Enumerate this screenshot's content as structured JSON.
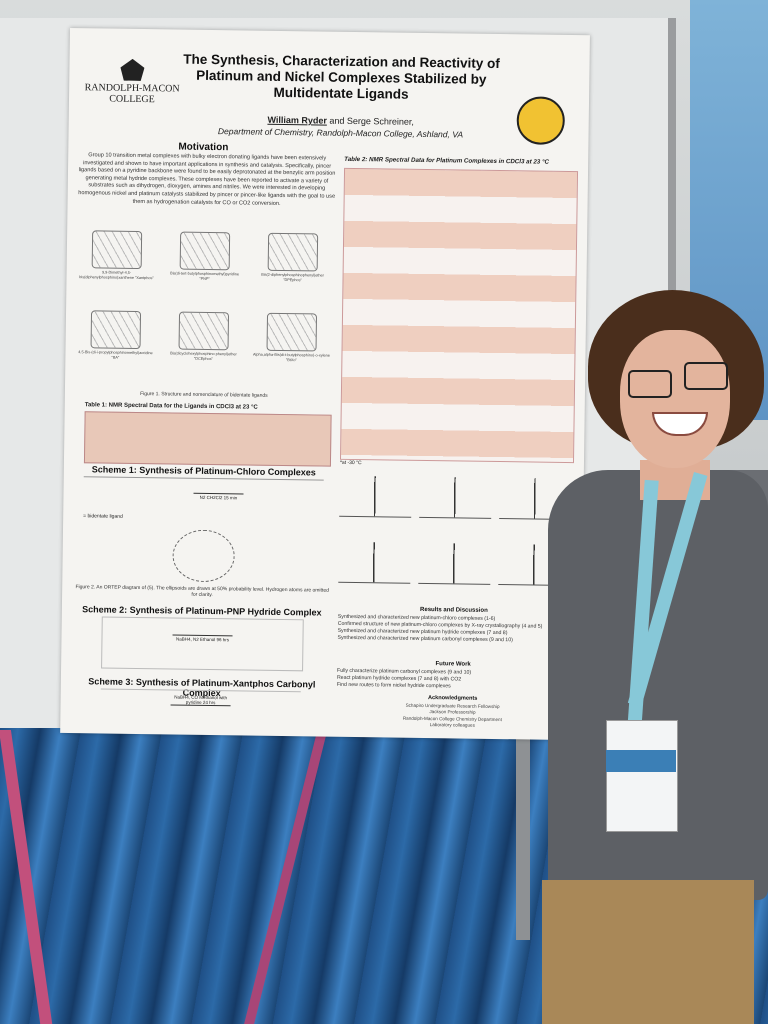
{
  "poster": {
    "logo_line1": "RANDOLPH-MACON",
    "logo_line2": "COLLEGE",
    "title": "The Synthesis, Characterization and Reactivity of Platinum and Nickel Complexes Stabilized by Multidentate Ligands",
    "author_main": "William Ryder",
    "author_rest": " and Serge Schreiner,",
    "affiliation": "Department of Chemistry, Randolph-Macon College, Ashland, VA",
    "motivation_heading": "Motivation",
    "motivation_text": "Group 10 transition metal complexes with bulky electron donating ligands have been extensively investigated and shown to have important applications in synthesis and catalysis. Specifically, pincer ligands based on a pyridine backbone were found to be easily deprotonated at the benzylic arm position generating metal hydride complexes. These complexes have been reported to activate a variety of substrates such as dihydrogen, dioxygen, amines and nitriles. We were interested in developing homogenous nickel and platinum catalysts stabilized by pincer or pincer-like ligands with the goal to use them as hydrogenation catalysts for CO or CO2 conversion.",
    "structures": [
      {
        "label": "9,9-Dimethyl-4,5-bis(diphenylphosphino)xanthene \"Xantphos\""
      },
      {
        "label": "Bis(di-tert-butylphosphinomethyl)pyridine \"PNP\""
      },
      {
        "label": "Bis(2-diphenylphosphinophenyl)ether \"DPEphos\""
      },
      {
        "label": "4,5-Bis-(di-i-propylphosphinomethyl)acridine \"BA\""
      },
      {
        "label": "Bis(dicyclohexylphosphino phenyl)ether \"DCEphos\""
      },
      {
        "label": "Alpha,alpha-Bis(di-t-butylphosphino)-o-xylene \"BtXo\""
      }
    ],
    "figure1_caption": "Figure 1. Structure and nomenclature of bidentate ligands",
    "table1_title": "Table 1: NMR Spectral Data for the Ligands in CDCl3 at 23 °C",
    "scheme1_heading": "Scheme 1: Synthesis of Platinum-Chloro Complexes",
    "scheme1_ligand_note": "= bidentate ligand",
    "scheme1_conditions": "N2 CH2Cl2 15 min",
    "figure2_caption": "Figure 2. An ORTEP diagram of (5). The ellipsoids are drawn at 50% probability level. Hydrogen atoms are omitted for clarity.",
    "scheme2_heading": "Scheme 2: Synthesis of Platinum-PNP Hydride Complex",
    "scheme2_conditions": "NaBH4, N2 Ethanol 96 hrs",
    "scheme3_heading": "Scheme 3: Synthesis of Platinum-Xantphos Carbonyl Complex",
    "scheme3_conditions": "NaBH4, CO Methanol with pyridine 24 hrs",
    "table2_title": "Table 2: NMR Spectral Data for Platinum Complexes in CDCl3 at 23 °C",
    "table2_note": "*at -30 °C",
    "results_heading": "Results and Discussion",
    "results_bullets": [
      "Synthesized and characterized new platinum-chloro complexes (1-6)",
      "Confirmed structure of new platinum-chloro complexes by X-ray crystallography (4 and 5)",
      "Synthesized and characterized new platinum hydride complexes (7 and 8)",
      "Synthesized and characterized new platinum carbonyl complexes (9 and 10)"
    ],
    "future_heading": "Future Work",
    "future_bullets": [
      "Fully characterize platinum carbonyl complexes (9 and 10)",
      "React platinum hydride complexes (7 and 8) with CO2",
      "Find new routes to form nickel hydride complexes"
    ],
    "ack_heading": "Acknowledgments",
    "ack_lines": [
      "Schapiro Undergraduate Research Fellowship",
      "Jackson Professorship",
      "Randolph-Macon College Chemistry Department",
      "Laboratory colleagues"
    ]
  },
  "colors": {
    "table_fill": "#e8c8b8",
    "lanyard": "#87c8d8",
    "shirt": "#5d6065",
    "carpet": "#2c6aa8"
  }
}
